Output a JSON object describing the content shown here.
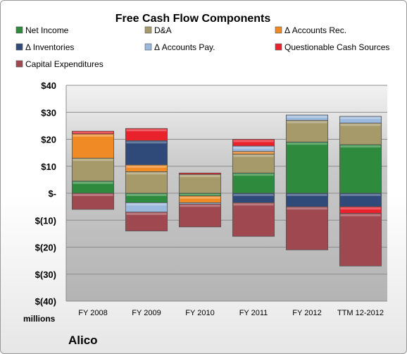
{
  "chart_data": {
    "type": "bar",
    "stacked": true,
    "title": "Free Cash Flow Components",
    "company": "Alico",
    "unit_label": "millions",
    "categories": [
      "FY 2008",
      "FY 2009",
      "FY 2010",
      "FY 2011",
      "FY 2012",
      "TTM 12-2012"
    ],
    "y_ticks": [
      40,
      30,
      20,
      10,
      0,
      -10,
      -20,
      -30,
      -40
    ],
    "y_tick_labels": [
      "$40",
      "$30",
      "$20",
      "$10",
      "$-",
      "$(10)",
      "$(20)",
      "$(30)",
      "$(40)"
    ],
    "ylim": [
      -40,
      40
    ],
    "grid": true,
    "legend_position": "top",
    "series": [
      {
        "name": "Net Income",
        "color": "#2e8b3e",
        "values": [
          4.5,
          -3.5,
          -1.0,
          7.5,
          19.0,
          18.0
        ]
      },
      {
        "name": "D&A",
        "color": "#a69a6a",
        "values": [
          8.5,
          8.0,
          7.0,
          7.0,
          8.0,
          8.0
        ]
      },
      {
        "name": "Δ Accounts Rec.",
        "color": "#f08a24",
        "values": [
          9.0,
          2.5,
          -2.5,
          1.0,
          0.0,
          0.0
        ]
      },
      {
        "name": "Δ Inventories",
        "color": "#2f4a78",
        "values": [
          0.0,
          9.0,
          0.0,
          -3.5,
          -5.0,
          -5.0
        ]
      },
      {
        "name": "Δ Accounts Pay.",
        "color": "#9bb8dd",
        "values": [
          0.0,
          -3.5,
          -0.5,
          2.0,
          2.0,
          2.5
        ]
      },
      {
        "name": "Questionable Cash Sources",
        "color": "#e8212b",
        "values": [
          1.0,
          4.5,
          0.5,
          2.5,
          0.0,
          -2.5
        ]
      },
      {
        "name": "Capital Expenditures",
        "color": "#a0484f",
        "values": [
          -6.0,
          -7.0,
          -8.5,
          -12.5,
          -16.0,
          -19.5
        ]
      }
    ]
  }
}
